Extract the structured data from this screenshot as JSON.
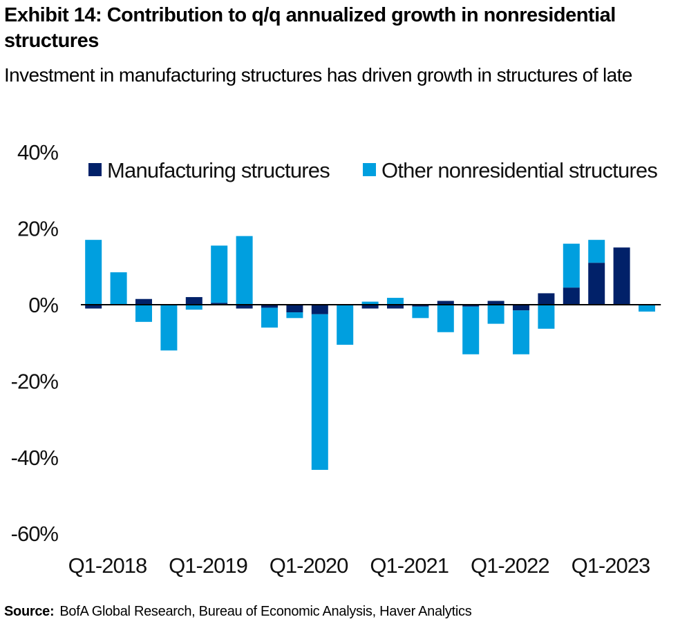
{
  "title": "Exhibit 14: Contribution to q/q annualized growth in nonresidential structures",
  "subtitle": "Investment in manufacturing structures has driven growth in structures of late",
  "source_label": "Source:",
  "source_text": "BofA Global Research, Bureau of Economic  Analysis, Haver Analytics",
  "colors": {
    "manufacturing": "#012169",
    "other": "#009FDF",
    "axis": "#000000"
  },
  "chart_data": {
    "type": "bar",
    "stacked": true,
    "title": "Exhibit 14: Contribution to q/q annualized growth in nonresidential structures",
    "xlabel": "",
    "ylabel": "",
    "ylim": [
      -60,
      40
    ],
    "y_ticks": [
      "40%",
      "20%",
      "0%",
      "-20%",
      "-40%",
      "-60%"
    ],
    "y_tick_values": [
      40,
      20,
      0,
      -20,
      -40,
      -60
    ],
    "grid": false,
    "legend_position": "top-right",
    "categories": [
      "Q1-2018",
      "Q2-2018",
      "Q3-2018",
      "Q4-2018",
      "Q1-2019",
      "Q2-2019",
      "Q3-2019",
      "Q4-2019",
      "Q1-2020",
      "Q2-2020",
      "Q3-2020",
      "Q4-2020",
      "Q1-2021",
      "Q2-2021",
      "Q3-2021",
      "Q4-2021",
      "Q1-2022",
      "Q2-2022",
      "Q3-2022",
      "Q4-2022",
      "Q1-2023",
      "Q2-2023",
      "Q3-2023"
    ],
    "x_tick_labels": [
      "Q1-2018",
      "Q1-2019",
      "Q1-2020",
      "Q1-2021",
      "Q1-2022",
      "Q1-2023"
    ],
    "x_tick_indices": [
      0,
      4,
      8,
      12,
      16,
      20
    ],
    "series": [
      {
        "name": "Manufacturing structures",
        "color": "#012169",
        "values": [
          -1.0,
          0.0,
          1.5,
          0.0,
          2.0,
          0.5,
          -1.0,
          -0.8,
          -2.0,
          -2.5,
          0.0,
          -1.0,
          -1.0,
          -0.5,
          1.0,
          -0.5,
          1.0,
          -1.5,
          3.0,
          4.5,
          11.0,
          15.0,
          0.0
        ]
      },
      {
        "name": "Other nonresidential structures",
        "color": "#009FDF",
        "values": [
          17.0,
          8.5,
          -4.5,
          -12.0,
          -1.3,
          15.0,
          18.0,
          -5.2,
          -1.5,
          -40.8,
          -10.5,
          0.8,
          1.8,
          -3.0,
          -7.2,
          -12.5,
          -5.0,
          -11.5,
          -6.3,
          11.5,
          6.0,
          0.0,
          -1.8
        ]
      }
    ]
  }
}
